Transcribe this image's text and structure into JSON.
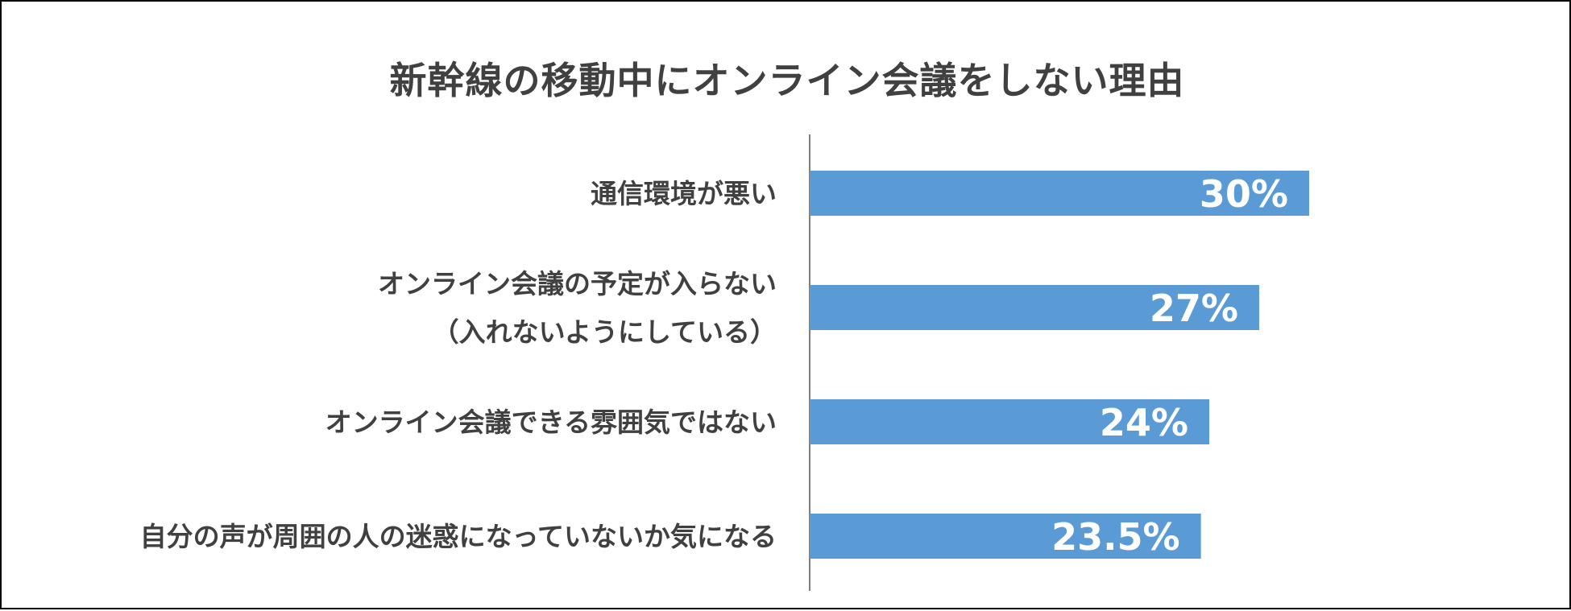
{
  "chart_data": {
    "type": "bar",
    "orientation": "horizontal",
    "title": "新幹線の移動中にオンライン会議をしない理由",
    "categories": [
      [
        "通信環境が悪い"
      ],
      [
        "オンライン会議の予定が入らない",
        "（入れないようにしている）"
      ],
      [
        "オンライン会議できる雰囲気ではない"
      ],
      [
        "自分の声が周囲の人の迷惑になっていないか気になる"
      ]
    ],
    "values": [
      30,
      27,
      24,
      23.5
    ],
    "value_labels": [
      "30%",
      "27%",
      "24%",
      "23.5%"
    ],
    "unit": "%",
    "xlim": [
      0,
      30
    ],
    "grid": false,
    "legend": "none",
    "bar_color": "#5b9bd5",
    "label_color": "#404040",
    "value_label_color": "#ffffff"
  }
}
